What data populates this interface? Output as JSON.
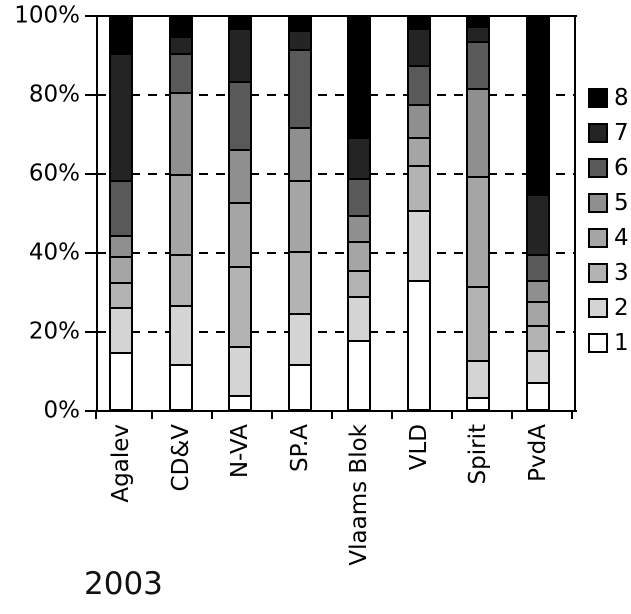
{
  "year_label": "2003",
  "chart_data": {
    "type": "bar",
    "subtype": "100%-stacked-vertical",
    "title": "",
    "xlabel": "2003",
    "ylabel": "",
    "ylim": [
      0,
      100
    ],
    "grid": "dashed horizontal gridlines at 20%, 40%, 60%, 80%",
    "legend_position": "right",
    "yticks": [
      "0%",
      "20%",
      "40%",
      "60%",
      "80%",
      "100%"
    ],
    "categories": [
      "Agalev",
      "CD&V",
      "N-VA",
      "SP.A",
      "Vlaams Blok",
      "VLD",
      "Spirit",
      "PvdA"
    ],
    "legend_labels": [
      "8",
      "7",
      "6",
      "5",
      "4",
      "3",
      "2",
      "1"
    ],
    "series": [
      {
        "name": "1",
        "color": "#ffffff",
        "values": [
          14,
          11,
          3,
          11,
          17,
          32.5,
          2.5,
          6.5
        ]
      },
      {
        "name": "2",
        "color": "#d4d4d4",
        "values": [
          11.5,
          15,
          12.5,
          13,
          11.5,
          18,
          9.5,
          8
        ]
      },
      {
        "name": "3",
        "color": "#b3b3b3",
        "values": [
          6.5,
          13,
          20.5,
          16,
          6.5,
          11.5,
          19,
          6.5
        ]
      },
      {
        "name": "4",
        "color": "#a5a5a5",
        "values": [
          6.5,
          20.5,
          16.5,
          18,
          7.5,
          7,
          28,
          6
        ]
      },
      {
        "name": "5",
        "color": "#8f8f8f",
        "values": [
          5.5,
          21,
          13.5,
          13.5,
          6.5,
          8.5,
          22.5,
          5.5
        ]
      },
      {
        "name": "6",
        "color": "#595959",
        "values": [
          14,
          10,
          17.5,
          20,
          9.5,
          10,
          12,
          6.5
        ]
      },
      {
        "name": "7",
        "color": "#242424",
        "values": [
          32.5,
          4.5,
          13.5,
          5,
          10.5,
          9.5,
          4,
          15.5
        ]
      },
      {
        "name": "8",
        "color": "#000000",
        "values": [
          9.5,
          5,
          3,
          3.5,
          31,
          3,
          2.5,
          45.5
        ]
      }
    ]
  }
}
